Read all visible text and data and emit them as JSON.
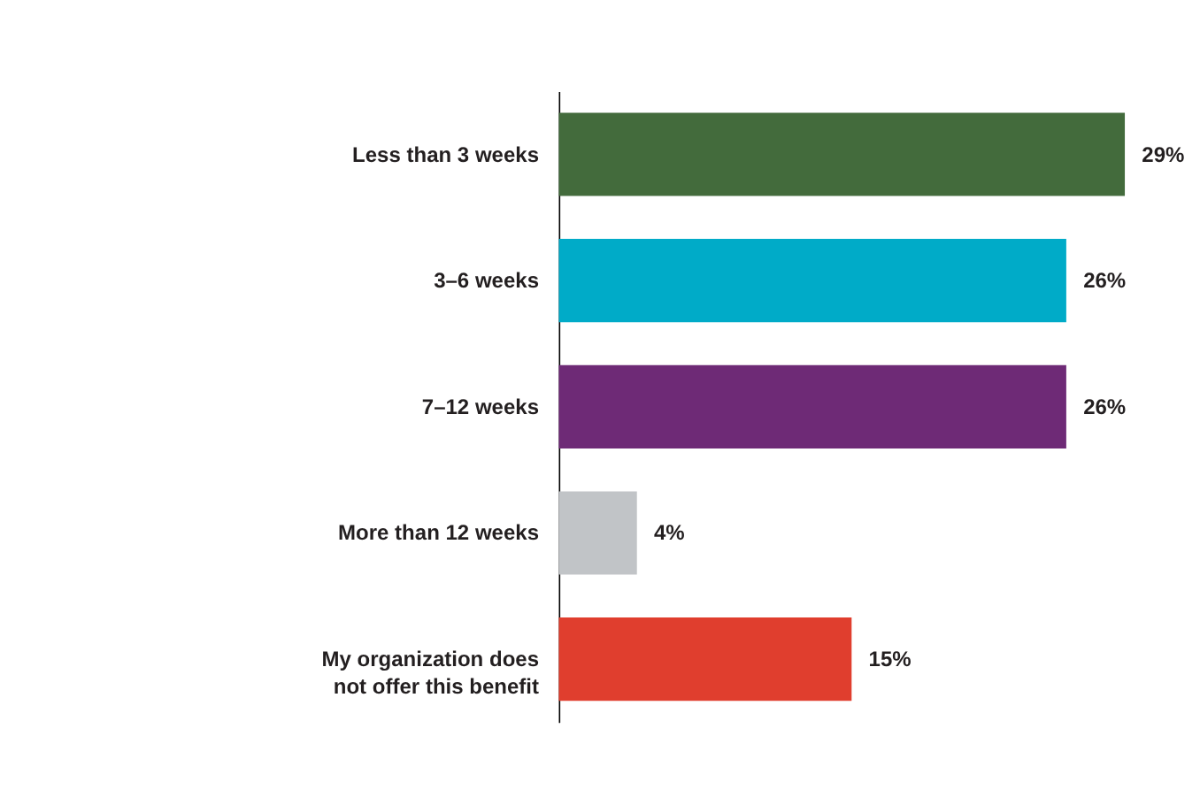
{
  "chart_data": {
    "type": "bar",
    "orientation": "horizontal",
    "categories": [
      "Less than 3 weeks",
      "3–6 weeks",
      "7–12 weeks",
      "More than 12 weeks",
      "My organization does not offer this benefit"
    ],
    "values": [
      29,
      26,
      26,
      4,
      15
    ],
    "colors": [
      "#436b3c",
      "#00abc8",
      "#6e2a76",
      "#c1c4c7",
      "#e03e2e"
    ],
    "value_labels": [
      "29%",
      "26%",
      "26%",
      "4%",
      "15%"
    ]
  }
}
